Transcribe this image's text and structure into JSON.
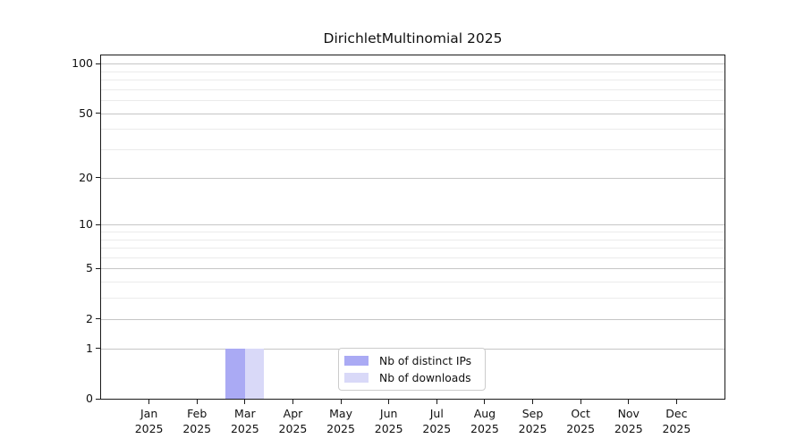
{
  "title": "DirichletMultinomial 2025",
  "colors": {
    "distinct_ips": "#aaaaf4",
    "downloads": "#d9d9f8",
    "grid_major": "#c6c6c6",
    "grid_minor": "#ebebeb",
    "axis": "#1a1a1a"
  },
  "legend": {
    "items": [
      {
        "label": "Nb of distinct IPs"
      },
      {
        "label": "Nb of downloads"
      }
    ]
  },
  "chart_data": {
    "type": "bar",
    "title": "DirichletMultinomial 2025",
    "categories": [
      "Jan",
      "Feb",
      "Mar",
      "Apr",
      "May",
      "Jun",
      "Jul",
      "Aug",
      "Sep",
      "Oct",
      "Nov",
      "Dec"
    ],
    "year": "2025",
    "series": [
      {
        "name": "Nb of distinct IPs",
        "color": "#aaaaf4",
        "values": [
          0,
          0,
          1,
          0,
          0,
          0,
          0,
          0,
          0,
          0,
          0,
          0
        ]
      },
      {
        "name": "Nb of downloads",
        "color": "#d9d9f8",
        "values": [
          0,
          0,
          1,
          0,
          0,
          0,
          0,
          0,
          0,
          0,
          0,
          0
        ]
      }
    ],
    "xlabel": "",
    "ylabel": "",
    "yscale": "log1p",
    "yticks": [
      0,
      1,
      2,
      5,
      10,
      20,
      50,
      100
    ],
    "minor_gridlines": [
      3,
      4,
      6,
      7,
      8,
      9,
      30,
      40,
      60,
      70,
      80,
      90
    ],
    "ylim": [
      0,
      112
    ],
    "grid": true,
    "legend_position": "bottom-center"
  }
}
